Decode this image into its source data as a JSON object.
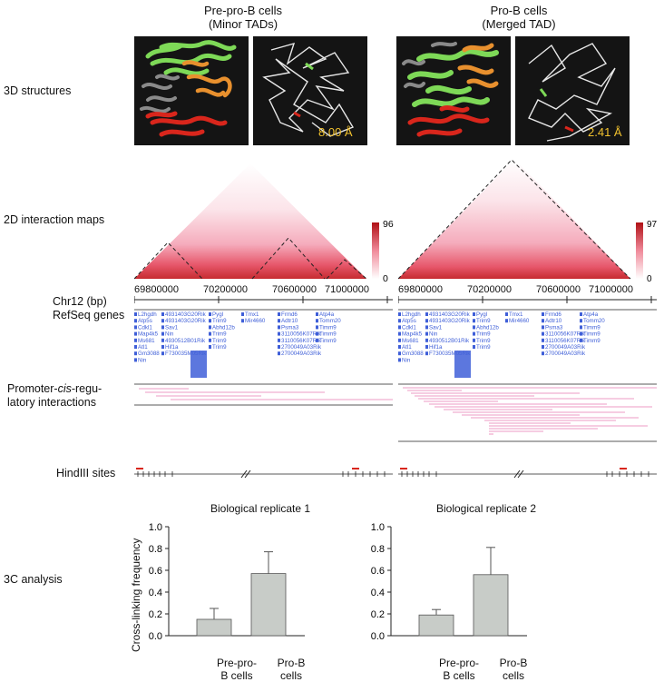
{
  "columns": {
    "left": {
      "title_line1": "Pre-pro-B cells",
      "title_line2": "(Minor TADs)",
      "rmsd": "8.00 Å",
      "colorbar_max": "96",
      "colorbar_min": "0"
    },
    "right": {
      "title_line1": "Pro-B cells",
      "title_line2": "(Merged TAD)",
      "rmsd": "2.41 Å",
      "colorbar_max": "97",
      "colorbar_min": "0"
    }
  },
  "row_labels": {
    "structures": "3D structures",
    "maps": "2D interaction maps",
    "chr": "Chr12 (bp)",
    "refseq": "RefSeq genes",
    "promoter_line1": "Promoter-",
    "promoter_cis": "cis",
    "promoter_line1_end": "-regu-",
    "promoter_line2": "latory interactions",
    "hindiii": "HindIII sites",
    "c3": "3C analysis"
  },
  "axis_ticks": [
    "69800000",
    "70200000",
    "70600000",
    "71000000"
  ],
  "genes": {
    "col1": [
      "L2hgdh",
      "Atp5s",
      "Cdkl1",
      "Map4k5",
      "Ms681",
      "Atl1",
      "Gm3088",
      "Nin"
    ],
    "col2": [
      "4931403G20Rik",
      "4931403G20Rik",
      "Sav1",
      "Nin",
      "4930512B01Rik",
      "Hif1a",
      "F730035M05Rik"
    ],
    "col3": [
      "Pygl",
      "Trim9",
      "Abhd12b",
      "Trim9",
      "Trim9",
      "Trim9"
    ],
    "col4": [
      "Tmx1",
      "Mir4660"
    ],
    "col5": [
      "Frmd6",
      "Adtr10",
      "Psma3",
      "3110056K07Rik",
      "3110056K07Rik",
      "2700049A03Rik",
      "2700049A03Rik"
    ],
    "col6": [
      "Atp4a",
      "Tomm20",
      "Timm9",
      "Timm9",
      "Timm9"
    ]
  },
  "chart_data": [
    {
      "type": "bar",
      "title": "Biological replicate 1",
      "ylabel": "Cross-linking frequency",
      "categories": [
        "Pre-pro-B cells",
        "Pro-B cells"
      ],
      "values": [
        0.15,
        0.57
      ],
      "errors": [
        0.1,
        0.2
      ],
      "ylim": [
        0,
        1.0
      ],
      "yticks": [
        "0.0",
        "0.2",
        "0.4",
        "0.6",
        "0.8",
        "1.0"
      ],
      "category_line1": [
        "Pre-pro-",
        "Pro-B"
      ],
      "category_line2": [
        "B cells",
        "cells"
      ]
    },
    {
      "type": "bar",
      "title": "Biological replicate 2",
      "ylabel": "",
      "categories": [
        "Pre-pro-B cells",
        "Pro-B cells"
      ],
      "values": [
        0.19,
        0.56
      ],
      "errors": [
        0.05,
        0.25
      ],
      "ylim": [
        0,
        1.0
      ],
      "yticks": [
        "0.0",
        "0.2",
        "0.4",
        "0.6",
        "0.8",
        "1.0"
      ],
      "category_line1": [
        "Pre-pro-",
        "Pro-B"
      ],
      "category_line2": [
        "B cells",
        "cells"
      ]
    }
  ],
  "colors": {
    "green": "#7ed957",
    "orange": "#e8902e",
    "red": "#d9261c",
    "grey": "#8a8a8a",
    "pink_link": "#e87ab3",
    "gene_blue": "#3f5fd8",
    "bar_fill": "#c8ccc8",
    "rmsd_yellow": "#f2c22e"
  }
}
